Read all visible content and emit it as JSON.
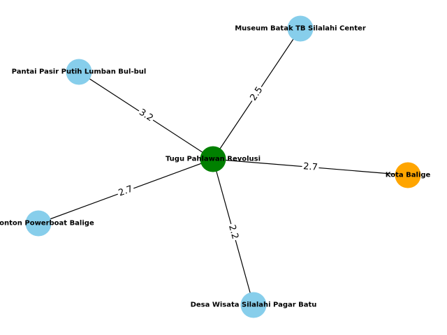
{
  "nodes": [
    {
      "id": "tugu",
      "label": "Tugu Pahlawan Revolusi",
      "color": "#008000"
    },
    {
      "id": "museum",
      "label": "Museum Batak TB Silalahi Center",
      "color": "#87ceeb"
    },
    {
      "id": "pantai",
      "label": "Pantai Pasir Putih Lumban Bul-bul",
      "color": "#87ceeb"
    },
    {
      "id": "kota",
      "label": "Kota Balige",
      "color": "#ffa500"
    },
    {
      "id": "menonton",
      "label": "Menonton Powerboat Balige",
      "color": "#87ceeb"
    },
    {
      "id": "desa",
      "label": "Desa Wisata Silalahi Pagar Batu",
      "color": "#87ceeb"
    }
  ],
  "edges": [
    {
      "source": "tugu",
      "target": "museum",
      "weight": "2.5"
    },
    {
      "source": "tugu",
      "target": "pantai",
      "weight": "3.2"
    },
    {
      "source": "tugu",
      "target": "kota",
      "weight": "2.7"
    },
    {
      "source": "tugu",
      "target": "menonton",
      "weight": "2.7"
    },
    {
      "source": "tugu",
      "target": "desa",
      "weight": "2.2"
    }
  ]
}
